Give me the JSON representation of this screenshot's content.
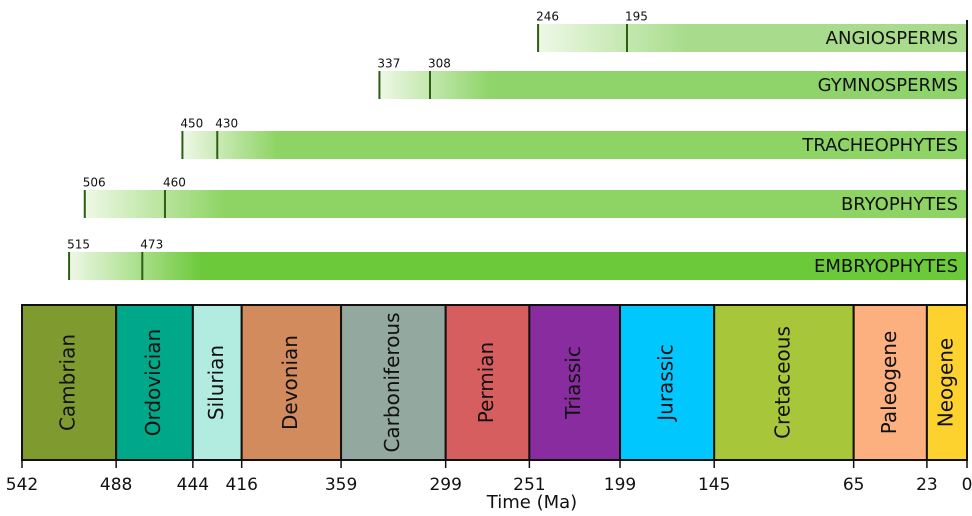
{
  "chart_data": {
    "type": "timeline",
    "xlabel": "Time (Ma)",
    "xlim": [
      542,
      0
    ],
    "xticks": [
      542,
      488,
      444,
      416,
      359,
      299,
      251,
      199,
      145,
      65,
      23,
      0
    ],
    "periods": [
      {
        "name": "Cambrian",
        "color": "#7f9a2e"
      },
      {
        "name": "Ordovician",
        "color": "#00a88a"
      },
      {
        "name": "Silurian",
        "color": "#b2ebe0"
      },
      {
        "name": "Devonian",
        "color": "#d28b5c"
      },
      {
        "name": "Carboniferous",
        "color": "#93a9a0"
      },
      {
        "name": "Permian",
        "color": "#d65e5e"
      },
      {
        "name": "Triassic",
        "color": "#892ca0"
      },
      {
        "name": "Jurassic",
        "color": "#00c8ff"
      },
      {
        "name": "Cretaceous",
        "color": "#a8c63a"
      },
      {
        "name": "Paleogene",
        "color": "#fdb07f"
      },
      {
        "name": "Neogene",
        "color": "#fdd12e"
      }
    ],
    "series": [
      {
        "name": "ANGIOSPERMS",
        "color": "#a8dc8c",
        "values": [
          246,
          195
        ]
      },
      {
        "name": "GYMNOSPERMS",
        "color": "#8fd46a",
        "values": [
          337,
          308
        ]
      },
      {
        "name": "TRACHEOPHYTES",
        "color": "#8ed464",
        "values": [
          450,
          430
        ]
      },
      {
        "name": "BRYOPHYTES",
        "color": "#8ed464",
        "values": [
          506,
          460
        ]
      },
      {
        "name": "EMBRYOPHYTES",
        "color": "#6cc93a",
        "values": [
          515,
          473
        ]
      }
    ]
  }
}
